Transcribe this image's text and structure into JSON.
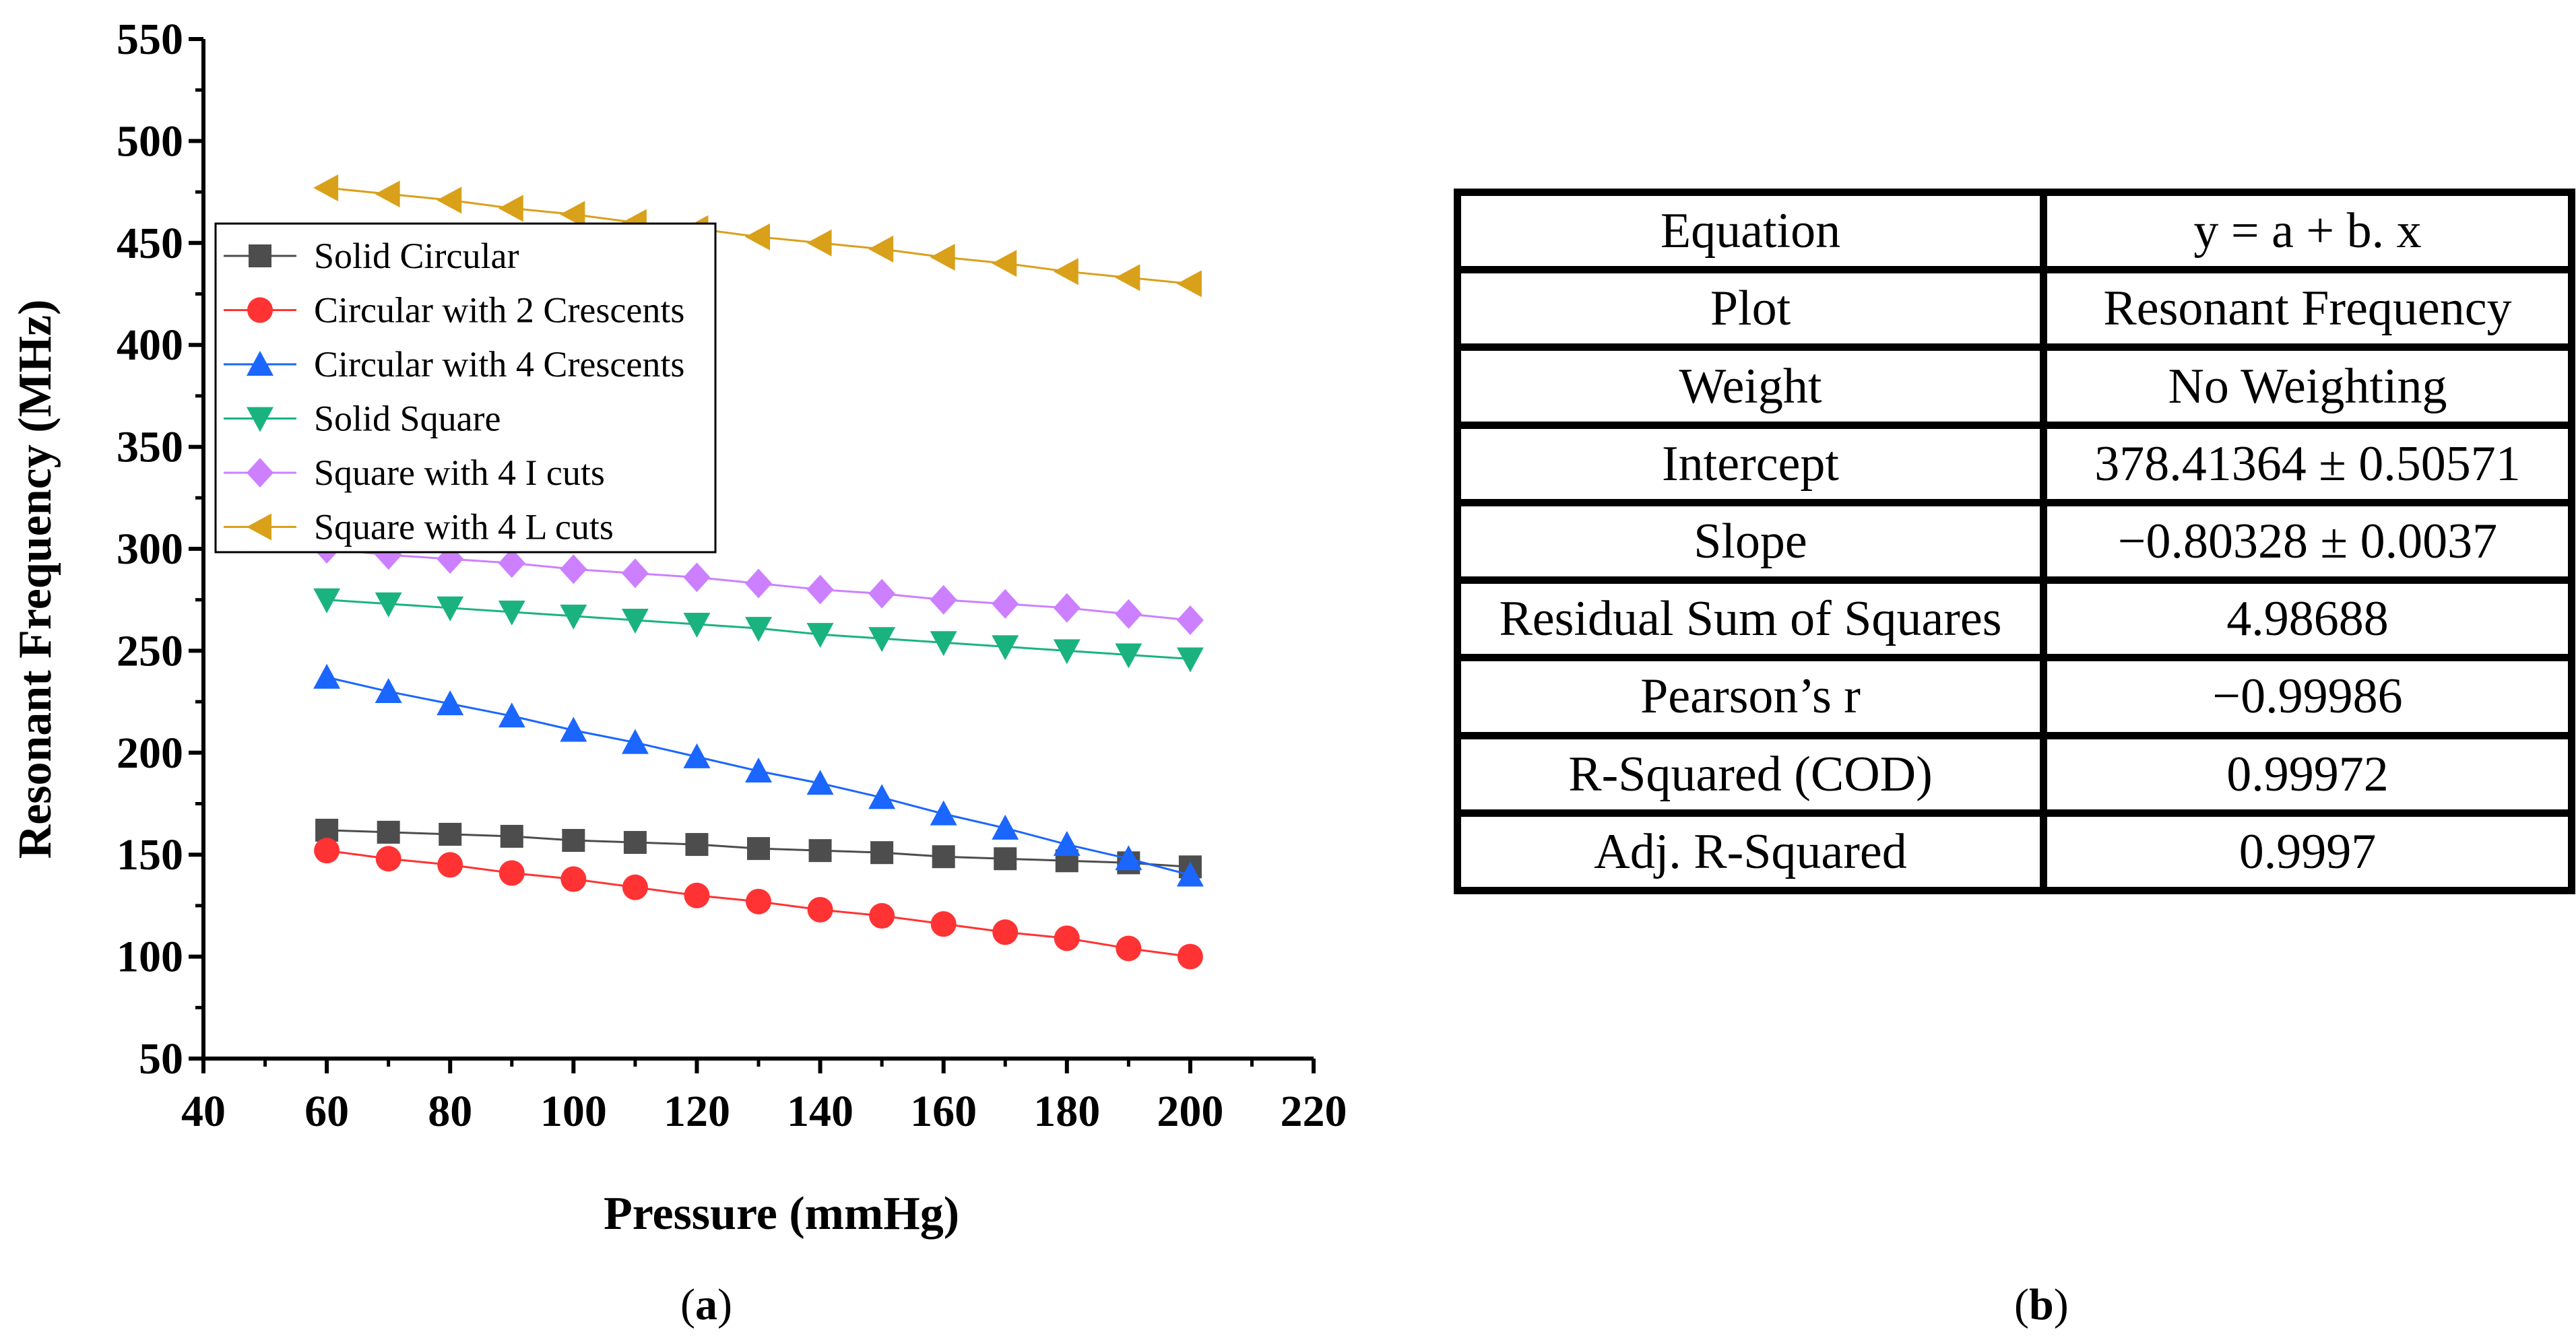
{
  "chart_data": [
    {
      "type": "line",
      "panel": "a",
      "title": "",
      "xlabel": "Pressure (mmHg)",
      "ylabel": "Resonant Frequency (MHz)",
      "xlim": [
        40,
        220
      ],
      "ylim": [
        50,
        550
      ],
      "xticks": [
        40,
        60,
        80,
        100,
        120,
        140,
        160,
        180,
        200,
        220
      ],
      "yticks": [
        50,
        100,
        150,
        200,
        250,
        300,
        350,
        400,
        450,
        500,
        550
      ],
      "grid": false,
      "legend_position": "upper-left",
      "x": [
        60,
        70,
        80,
        90,
        100,
        110,
        120,
        130,
        140,
        150,
        160,
        170,
        180,
        190,
        200
      ],
      "series": [
        {
          "name": "Solid Circular",
          "color": "#4d4d4d",
          "marker": "square",
          "values": [
            162,
            161,
            160,
            159,
            157,
            156,
            155,
            153,
            152,
            151,
            149,
            148,
            147,
            146,
            144
          ]
        },
        {
          "name": "Circular with 2 Crescents",
          "color": "#ff3333",
          "marker": "circle",
          "values": [
            152,
            148,
            145,
            141,
            138,
            134,
            130,
            127,
            123,
            120,
            116,
            112,
            109,
            104,
            100
          ]
        },
        {
          "name": "Circular with 4 Crescents",
          "color": "#1a66ff",
          "marker": "triangle-up",
          "values": [
            237,
            230,
            224,
            218,
            211,
            205,
            198,
            191,
            185,
            178,
            170,
            163,
            155,
            148,
            140
          ]
        },
        {
          "name": "Solid Square",
          "color": "#1ab380",
          "marker": "triangle-down",
          "values": [
            275,
            273,
            271,
            269,
            267,
            265,
            263,
            261,
            258,
            256,
            254,
            252,
            250,
            248,
            246
          ]
        },
        {
          "name": "Square with 4 I cuts",
          "color": "#cc80ff",
          "marker": "diamond",
          "values": [
            300,
            297,
            295,
            293,
            290,
            288,
            286,
            283,
            280,
            278,
            275,
            273,
            271,
            268,
            265
          ]
        },
        {
          "name": "Square with 4 L cuts",
          "color": "#d9a01a",
          "marker": "triangle-left",
          "values": [
            477,
            474,
            471,
            467,
            464,
            460,
            457,
            453,
            450,
            447,
            443,
            440,
            436,
            433,
            430
          ]
        }
      ]
    },
    {
      "type": "table",
      "panel": "b",
      "rows": [
        [
          "Equation",
          "y = a + b. x"
        ],
        [
          "Plot",
          "Resonant Frequency"
        ],
        [
          "Weight",
          "No Weighting"
        ],
        [
          "Intercept",
          "378.41364 ± 0.50571"
        ],
        [
          "Slope",
          "−0.80328 ± 0.0037"
        ],
        [
          "Residual Sum of Squares",
          "4.98688"
        ],
        [
          "Pearson’s r",
          "−0.99986"
        ],
        [
          "R-Squared (COD)",
          "0.99972"
        ],
        [
          "Adj. R-Squared",
          "0.9997"
        ]
      ]
    }
  ],
  "captions": {
    "a_open": "(",
    "a_letter": "a",
    "a_close": ")",
    "b_open": "(",
    "b_letter": "b",
    "b_close": ")"
  }
}
